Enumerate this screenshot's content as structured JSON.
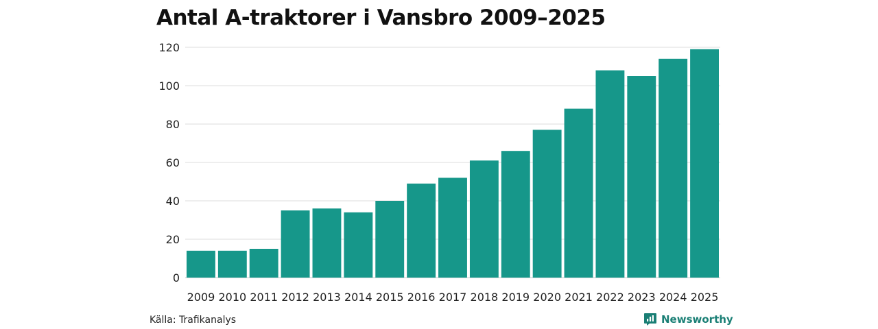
{
  "chart_data": {
    "type": "bar",
    "title": "Antal A-traktorer i Vansbro 2009–2025",
    "xlabel": "",
    "ylabel": "",
    "categories": [
      "2009",
      "2010",
      "2011",
      "2012",
      "2013",
      "2014",
      "2015",
      "2016",
      "2017",
      "2018",
      "2019",
      "2020",
      "2021",
      "2022",
      "2023",
      "2024",
      "2025"
    ],
    "values": [
      14,
      14,
      15,
      35,
      36,
      34,
      40,
      49,
      52,
      61,
      66,
      77,
      88,
      108,
      105,
      114,
      119
    ],
    "ylim": [
      0,
      120
    ],
    "yticks": [
      0,
      20,
      40,
      60,
      80,
      100,
      120
    ],
    "grid": true,
    "legend": "none",
    "bar_color": "#16978a",
    "grid_color": "#dcdcdc"
  },
  "footer": {
    "source": "Källa: Trafikanalys",
    "brand_name": "Newsworthy",
    "brand_icon": "newsworthy-logo-icon",
    "brand_color": "#1a7f75"
  }
}
